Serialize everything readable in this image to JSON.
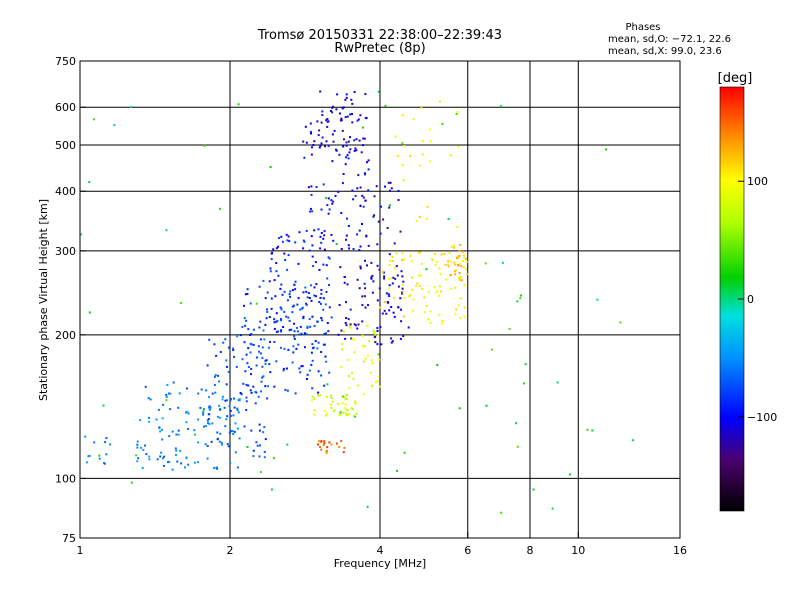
{
  "chart_data": {
    "type": "scatter",
    "title": "Tromsø 20150331 22:38:00–22:39:43",
    "subtitle": "RwPretec (8p)",
    "xlabel": "Frequency [MHz]",
    "ylabel": "Stationary phase Virtual Height [km]",
    "x_scale": "log",
    "y_scale": "log",
    "xlim": [
      1,
      16
    ],
    "ylim": [
      75,
      750
    ],
    "x_ticks": [
      "1",
      "2",
      "4",
      "6",
      "8",
      "10",
      "16"
    ],
    "x_tick_values": [
      1,
      2,
      4,
      6,
      8,
      10,
      16
    ],
    "y_ticks": [
      "75",
      "100",
      "200",
      "300",
      "400",
      "500",
      "600",
      "750"
    ],
    "y_tick_values": [
      75,
      100,
      200,
      300,
      400,
      500,
      600,
      750
    ],
    "grid_x": [
      2,
      4,
      6,
      8,
      10
    ],
    "grid_y": [
      100,
      200,
      300,
      400,
      500,
      600
    ],
    "stats": {
      "heading": "Phases",
      "line1": "mean, sd,O: −72.1, 22.6",
      "line2": "mean, sd,X:  99.0, 23.6"
    },
    "colorbar": {
      "label": "[deg]",
      "range": [
        -180,
        180
      ],
      "ticks": [
        "100",
        "0",
        "−100"
      ],
      "tick_values": [
        100,
        0,
        -100
      ]
    },
    "clusters": [
      {
        "fmin": 1.0,
        "fmax": 1.15,
        "hmin": 104,
        "hmax": 125,
        "phase": -55,
        "n": 12
      },
      {
        "fmin": 1.3,
        "fmax": 2.1,
        "hmin": 104,
        "hmax": 160,
        "phase": -55,
        "n": 130
      },
      {
        "fmin": 1.8,
        "fmax": 2.4,
        "hmin": 110,
        "hmax": 200,
        "phase": -75,
        "n": 80
      },
      {
        "fmin": 2.1,
        "fmax": 3.2,
        "hmin": 150,
        "hmax": 260,
        "phase": -80,
        "n": 150
      },
      {
        "fmin": 2.4,
        "fmax": 3.2,
        "hmin": 200,
        "hmax": 330,
        "phase": -90,
        "n": 90
      },
      {
        "fmin": 2.8,
        "fmax": 3.8,
        "hmin": 300,
        "hmax": 600,
        "phase": -100,
        "n": 110
      },
      {
        "fmin": 3.0,
        "fmax": 3.8,
        "hmin": 480,
        "hmax": 650,
        "phase": -115,
        "n": 40
      },
      {
        "fmin": 3.3,
        "fmax": 4.6,
        "hmin": 190,
        "hmax": 280,
        "phase": -110,
        "n": 80
      },
      {
        "fmin": 3.6,
        "fmax": 4.4,
        "hmin": 250,
        "hmax": 420,
        "phase": -115,
        "n": 40
      },
      {
        "fmin": 2.9,
        "fmax": 3.6,
        "hmin": 135,
        "hmax": 150,
        "phase": 80,
        "n": 45
      },
      {
        "fmin": 3.0,
        "fmax": 3.4,
        "hmin": 112,
        "hmax": 120,
        "phase": 150,
        "n": 20
      },
      {
        "fmin": 3.3,
        "fmax": 4.0,
        "hmin": 150,
        "hmax": 210,
        "phase": 85,
        "n": 40
      },
      {
        "fmin": 4.0,
        "fmax": 6.0,
        "hmin": 210,
        "hmax": 300,
        "phase": 100,
        "n": 90
      },
      {
        "fmin": 5.4,
        "fmax": 6.0,
        "hmin": 260,
        "hmax": 310,
        "phase": 125,
        "n": 25
      },
      {
        "fmin": 4.2,
        "fmax": 6.0,
        "hmin": 330,
        "hmax": 620,
        "phase": 95,
        "n": 25
      },
      {
        "fmin": 1.0,
        "fmax": 13.0,
        "hmin": 78,
        "hmax": 680,
        "phase": 20,
        "n": 70
      }
    ]
  }
}
